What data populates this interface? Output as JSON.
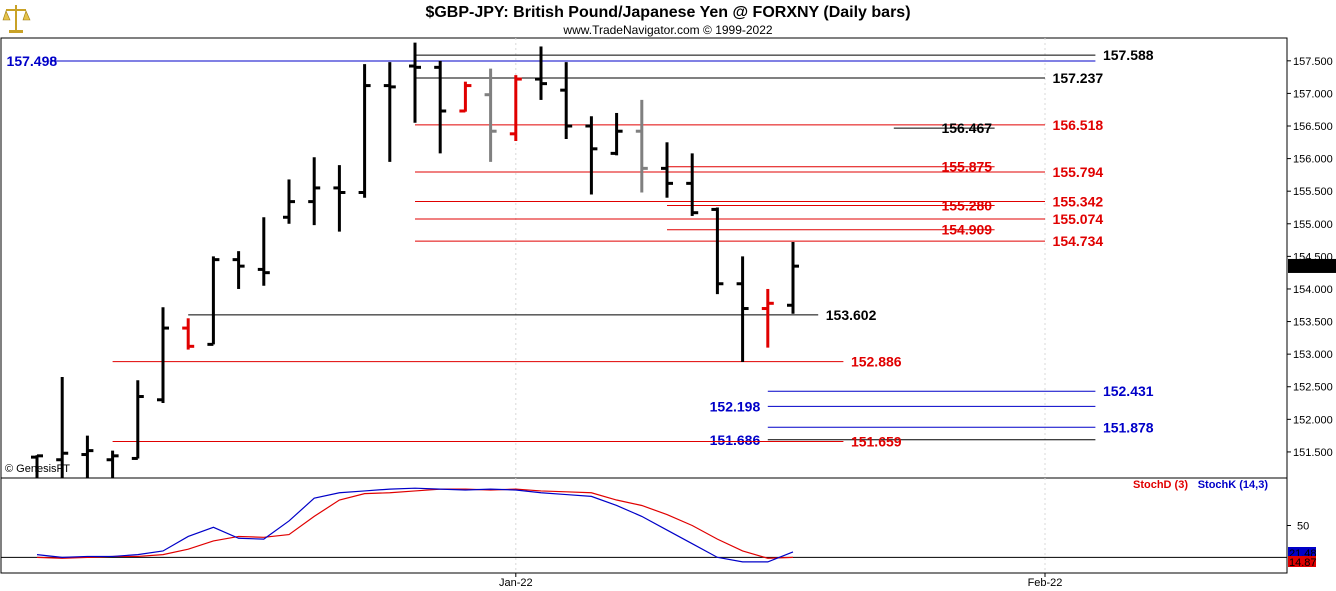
{
  "header": {
    "title": "$GBP-JPY:  British Pound/Japanese Yen @ FORXNY  (Daily bars)",
    "subtitle": "www.TradeNavigator.com © 1999-2022"
  },
  "watermark": "© GenesisFT",
  "logo_icon": "gold-scales-icon",
  "colors": {
    "bar_black": "#000000",
    "bar_red": "#e00000",
    "bar_gray": "#808080",
    "level_black": "#000000",
    "level_red": "#e00000",
    "level_blue": "#0000c8",
    "stoch_d": "#e00000",
    "stoch_k": "#0000c8",
    "last_price_bg": "#000000",
    "stoch_k_badge": "#0000c8",
    "stoch_d_badge": "#e00000"
  },
  "chart_data": [
    {
      "type": "ohlc",
      "title": "$GBP-JPY:  British Pound/Japanese Yen @ FORXNY  (Daily bars)",
      "ylim": [
        151.1,
        157.85
      ],
      "y_ticks": [
        "157.500",
        "157.000",
        "156.500",
        "156.000",
        "155.500",
        "155.000",
        "154.500",
        "154.000",
        "153.500",
        "153.000",
        "152.500",
        "152.000",
        "151.500"
      ],
      "y_tick_values": [
        157.5,
        157.0,
        156.5,
        156.0,
        155.5,
        155.0,
        154.5,
        154.0,
        153.5,
        153.0,
        152.5,
        152.0,
        151.5
      ],
      "last_price": "154.353",
      "x_labels": [
        {
          "index": 19,
          "text": "Jan-22"
        },
        {
          "index": 40,
          "text": "Feb-22"
        }
      ],
      "bars": [
        {
          "o": 151.42,
          "h": 151.45,
          "l": 151.1,
          "c": 151.44,
          "color": "black"
        },
        {
          "o": 151.38,
          "h": 152.65,
          "l": 151.1,
          "c": 151.48,
          "color": "black"
        },
        {
          "o": 151.46,
          "h": 151.75,
          "l": 151.1,
          "c": 151.52,
          "color": "black"
        },
        {
          "o": 151.38,
          "h": 151.52,
          "l": 151.1,
          "c": 151.44,
          "color": "black"
        },
        {
          "o": 151.4,
          "h": 152.6,
          "l": 151.4,
          "c": 152.35,
          "color": "black"
        },
        {
          "o": 152.3,
          "h": 153.72,
          "l": 152.25,
          "c": 153.4,
          "color": "black"
        },
        {
          "o": 153.4,
          "h": 153.55,
          "l": 153.07,
          "c": 153.12,
          "color": "red"
        },
        {
          "o": 153.15,
          "h": 154.5,
          "l": 153.15,
          "c": 154.45,
          "color": "black"
        },
        {
          "o": 154.45,
          "h": 154.58,
          "l": 154.0,
          "c": 154.35,
          "color": "black"
        },
        {
          "o": 154.3,
          "h": 155.1,
          "l": 154.05,
          "c": 154.25,
          "color": "black"
        },
        {
          "o": 155.1,
          "h": 155.68,
          "l": 155.0,
          "c": 155.34,
          "color": "black"
        },
        {
          "o": 155.34,
          "h": 156.02,
          "l": 154.98,
          "c": 155.55,
          "color": "black"
        },
        {
          "o": 155.55,
          "h": 155.9,
          "l": 154.88,
          "c": 155.48,
          "color": "black"
        },
        {
          "o": 155.48,
          "h": 157.45,
          "l": 155.4,
          "c": 157.12,
          "color": "black"
        },
        {
          "o": 157.12,
          "h": 157.48,
          "l": 155.95,
          "c": 157.1,
          "color": "black"
        },
        {
          "o": 157.42,
          "h": 157.78,
          "l": 156.55,
          "c": 157.4,
          "color": "black"
        },
        {
          "o": 157.4,
          "h": 157.5,
          "l": 156.08,
          "c": 156.73,
          "color": "black"
        },
        {
          "o": 156.73,
          "h": 157.18,
          "l": 156.72,
          "c": 157.12,
          "color": "red"
        },
        {
          "o": 156.98,
          "h": 157.38,
          "l": 155.95,
          "c": 156.42,
          "color": "gray"
        },
        {
          "o": 156.38,
          "h": 157.28,
          "l": 156.27,
          "c": 157.22,
          "color": "red"
        },
        {
          "o": 157.22,
          "h": 157.72,
          "l": 156.9,
          "c": 157.15,
          "color": "black"
        },
        {
          "o": 157.05,
          "h": 157.48,
          "l": 156.3,
          "c": 156.5,
          "color": "black"
        },
        {
          "o": 156.5,
          "h": 156.65,
          "l": 155.45,
          "c": 156.15,
          "color": "black"
        },
        {
          "o": 156.08,
          "h": 156.7,
          "l": 156.05,
          "c": 156.42,
          "color": "black"
        },
        {
          "o": 156.42,
          "h": 156.9,
          "l": 155.48,
          "c": 155.85,
          "color": "gray"
        },
        {
          "o": 155.85,
          "h": 156.25,
          "l": 155.4,
          "c": 155.62,
          "color": "black"
        },
        {
          "o": 155.62,
          "h": 156.08,
          "l": 155.12,
          "c": 155.17,
          "color": "black"
        },
        {
          "o": 155.22,
          "h": 155.25,
          "l": 153.92,
          "c": 154.08,
          "color": "black"
        },
        {
          "o": 154.08,
          "h": 154.5,
          "l": 152.88,
          "c": 153.7,
          "color": "black"
        },
        {
          "o": 153.7,
          "h": 154.0,
          "l": 153.1,
          "c": 153.78,
          "color": "red"
        },
        {
          "o": 153.75,
          "h": 154.72,
          "l": 153.62,
          "c": 154.35,
          "color": "black"
        }
      ],
      "levels": [
        {
          "value": 157.588,
          "label": "157.588",
          "label_color": "black",
          "line_color": "black",
          "from": 15,
          "to": 42,
          "label_at": 42.3,
          "label_side": "right"
        },
        {
          "value": 157.498,
          "label": "157.498",
          "label_color": "blue",
          "line_color": "blue",
          "from": 0.5,
          "to": 42,
          "label_at": 0.8,
          "label_side": "left"
        },
        {
          "value": 157.237,
          "label": "157.237",
          "label_color": "black",
          "line_color": "black",
          "from": 15,
          "to": 40,
          "label_at": 40.3,
          "label_side": "right"
        },
        {
          "value": 156.518,
          "label": "156.518",
          "label_color": "red",
          "line_color": "red",
          "from": 15,
          "to": 40,
          "label_at": 40.3,
          "label_side": "right"
        },
        {
          "value": 156.467,
          "label": "156.467",
          "label_color": "black",
          "line_color": "black",
          "from": 34,
          "to": 38,
          "label_at": 37.9,
          "label_side": "left"
        },
        {
          "value": 155.875,
          "label": "155.875",
          "label_color": "red",
          "line_color": "red",
          "from": 25,
          "to": 38,
          "label_at": 37.9,
          "label_side": "left"
        },
        {
          "value": 155.794,
          "label": "155.794",
          "label_color": "red",
          "line_color": "red",
          "from": 15,
          "to": 40,
          "label_at": 40.3,
          "label_side": "right"
        },
        {
          "value": 155.342,
          "label": "155.342",
          "label_color": "red",
          "line_color": "red",
          "from": 15,
          "to": 40,
          "label_at": 40.3,
          "label_side": "right"
        },
        {
          "value": 155.28,
          "label": "155.280",
          "label_color": "red",
          "line_color": "red",
          "from": 25,
          "to": 38,
          "label_at": 37.9,
          "label_side": "left"
        },
        {
          "value": 155.074,
          "label": "155.074",
          "label_color": "red",
          "line_color": "red",
          "from": 15,
          "to": 40,
          "label_at": 40.3,
          "label_side": "right"
        },
        {
          "value": 154.909,
          "label": "154.909",
          "label_color": "red",
          "line_color": "red",
          "from": 25,
          "to": 38,
          "label_at": 37.9,
          "label_side": "left"
        },
        {
          "value": 154.734,
          "label": "154.734",
          "label_color": "red",
          "line_color": "red",
          "from": 15,
          "to": 40,
          "label_at": 40.3,
          "label_side": "right"
        },
        {
          "value": 153.602,
          "label": "153.602",
          "label_color": "black",
          "line_color": "black",
          "from": 6,
          "to": 31,
          "label_at": 31.3,
          "label_side": "right"
        },
        {
          "value": 152.886,
          "label": "152.886",
          "label_color": "red",
          "line_color": "red",
          "from": 3,
          "to": 32,
          "label_at": 32.3,
          "label_side": "right"
        },
        {
          "value": 152.431,
          "label": "152.431",
          "label_color": "blue",
          "line_color": "blue",
          "from": 29,
          "to": 42,
          "label_at": 42.3,
          "label_side": "right"
        },
        {
          "value": 152.198,
          "label": "152.198",
          "label_color": "blue",
          "line_color": "blue",
          "from": 29,
          "to": 42,
          "label_at": 28.7,
          "label_side": "left"
        },
        {
          "value": 151.878,
          "label": "151.878",
          "label_color": "blue",
          "line_color": "blue",
          "from": 29,
          "to": 42,
          "label_at": 42.3,
          "label_side": "right"
        },
        {
          "value": 151.686,
          "label": "151.686",
          "label_color": "blue",
          "line_color": "black",
          "from": 29,
          "to": 42,
          "label_at": 28.7,
          "label_side": "left"
        },
        {
          "value": 151.659,
          "label": "151.659",
          "label_color": "red",
          "line_color": "red",
          "from": 3,
          "to": 32,
          "label_at": 32.3,
          "label_side": "right"
        }
      ]
    },
    {
      "type": "line",
      "ylim": [
        0,
        100
      ],
      "y_ticks": [
        "50"
      ],
      "y_tick_values": [
        50
      ],
      "series": [
        {
          "name": "StochD (3)",
          "color": "red",
          "values": [
            15,
            14,
            15,
            16,
            16,
            18,
            24,
            33,
            38,
            37,
            40,
            60,
            78,
            85,
            86,
            88,
            90,
            90,
            89,
            90,
            88,
            87,
            86,
            78,
            72,
            62,
            50,
            35,
            22,
            14,
            15
          ]
        },
        {
          "name": "StochK (14,3)",
          "color": "blue",
          "values": [
            18,
            15,
            16,
            16,
            18,
            22,
            38,
            48,
            36,
            35,
            55,
            80,
            86,
            88,
            90,
            91,
            90,
            89,
            90,
            89,
            86,
            84,
            82,
            72,
            60,
            45,
            30,
            15,
            10,
            10,
            21
          ]
        }
      ],
      "badges": [
        {
          "text": "21.48",
          "color": "blue",
          "value": 21.48
        },
        {
          "text": "14.87",
          "color": "red",
          "value": 14.87
        }
      ]
    }
  ]
}
